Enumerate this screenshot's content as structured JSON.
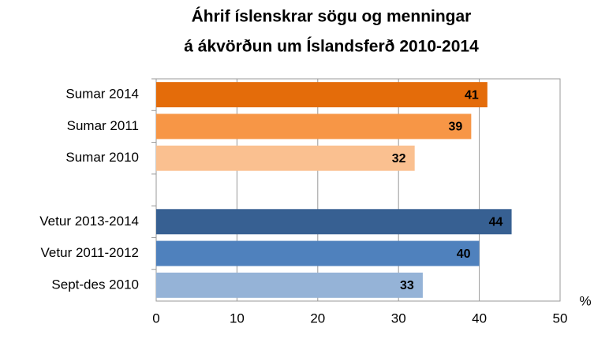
{
  "chart_data": {
    "type": "hbar",
    "title": [
      "Áhrif íslenskrar sögu og menningar",
      "á ákvörðun um  Íslandsferð 2010-2014"
    ],
    "categories": [
      "Sumar 2014",
      "Sumar 2011",
      "Sumar 2010",
      null,
      "Vetur 2013-2014",
      "Vetur 2011-2012",
      "Sept-des 2010"
    ],
    "values": [
      41,
      39,
      32,
      null,
      44,
      40,
      33
    ],
    "colors": [
      "#e46c0a",
      "#f79646",
      "#fac090",
      null,
      "#376092",
      "#4f81bd",
      "#95b3d7"
    ],
    "xlim": [
      0,
      50
    ],
    "xticks": [
      0,
      10,
      20,
      30,
      40,
      50
    ],
    "x_unit": "%",
    "grid": true
  }
}
